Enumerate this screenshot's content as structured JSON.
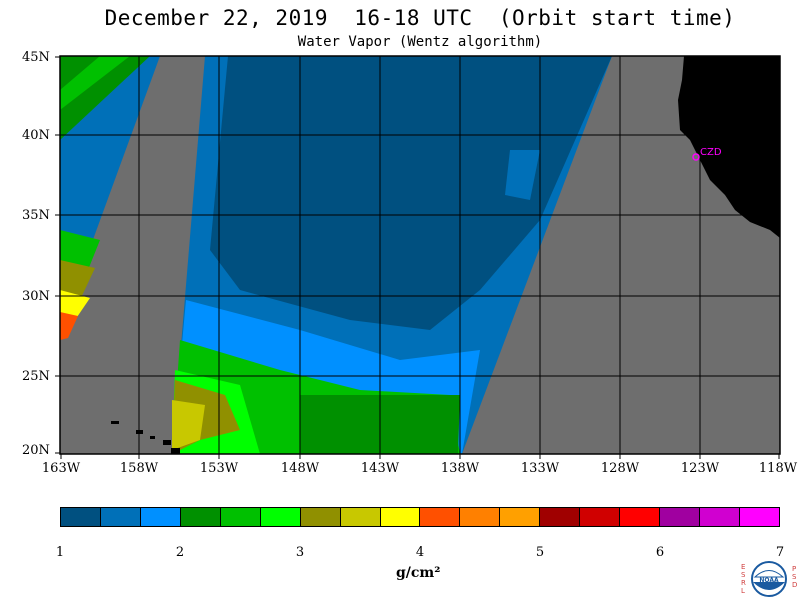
{
  "header": {
    "title": "December 22, 2019  16-18 UTC  (Orbit start time)",
    "subtitle": "Water Vapor (Wentz algorithm)"
  },
  "map": {
    "lat_labels": [
      "45N",
      "40N",
      "35N",
      "30N",
      "25N",
      "20N"
    ],
    "lon_labels": [
      "163W",
      "158W",
      "153W",
      "148W",
      "143W",
      "138W",
      "133W",
      "128W",
      "123W",
      "118W"
    ],
    "station_label": "CZD",
    "colors": {
      "no_data": "#6e6e6e",
      "land": "#000000",
      "station": "#ff00ff"
    }
  },
  "colorbar": {
    "ticks": [
      "1",
      "2",
      "3",
      "4",
      "5",
      "6",
      "7"
    ],
    "units": "g/cm²",
    "colors": [
      "#005080",
      "#0070b8",
      "#0090ff",
      "#009000",
      "#00c000",
      "#00ff00",
      "#909000",
      "#c8c800",
      "#ffff00",
      "#ff5000",
      "#ff8000",
      "#ffa000",
      "#a00000",
      "#d00000",
      "#ff0000",
      "#a000a0",
      "#d000d0",
      "#ff00ff"
    ]
  },
  "logo": {
    "left_letters": "ESRL",
    "right_letters": "PSD",
    "center": "NOAA"
  }
}
